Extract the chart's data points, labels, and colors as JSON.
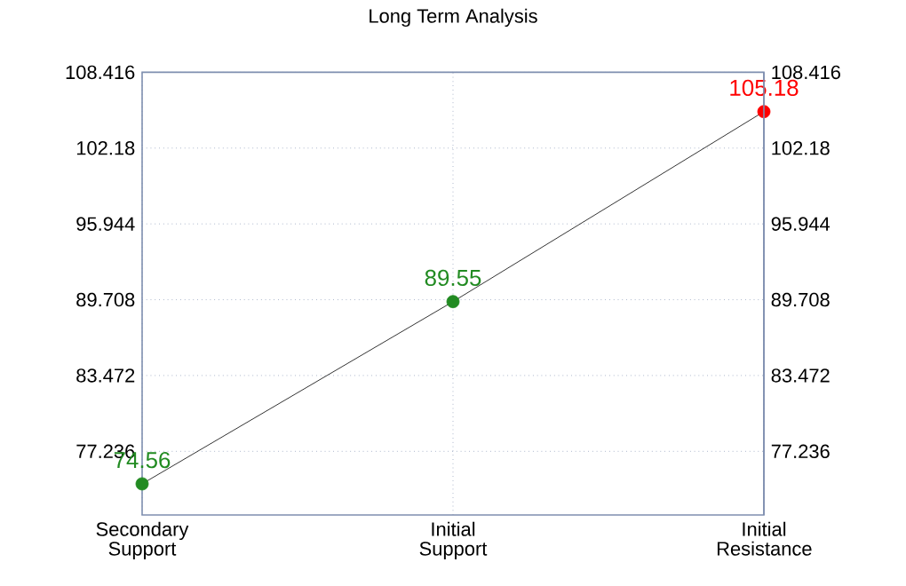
{
  "chart_data": {
    "type": "line",
    "title": "Long Term Analysis",
    "categories": [
      "Secondary Support",
      "Initial Support",
      "Initial Resistance"
    ],
    "values": [
      74.56,
      89.55,
      105.18
    ],
    "color": "#000000",
    "colors": [
      "#228b22",
      "#228b22",
      "#ff0000"
    ],
    "marker": "circle",
    "data_labels": true,
    "grid": true,
    "ylim": [
      72,
      108.416
    ],
    "yticks": [
      77.236,
      83.472,
      89.708,
      95.944,
      102.18,
      108.416
    ],
    "y2lim": [
      72,
      108.416
    ],
    "y2ticks": [
      77.236,
      83.472,
      89.708,
      95.944,
      102.18,
      108.416
    ]
  }
}
